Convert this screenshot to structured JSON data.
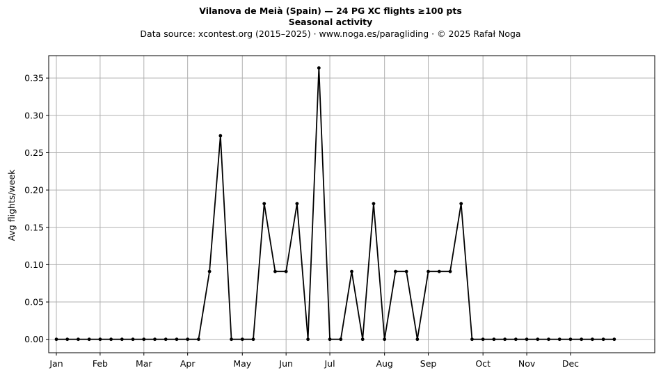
{
  "chart_data": {
    "type": "line",
    "title": "Vilanova de Meià (Spain)  —  24 PG XC flights ≥100 pts",
    "subtitle": "Seasonal activity",
    "source": "Data source: xcontest.org (2015–2025)  ·  www.noga.es/paragliding  ·  © 2025 Rafał Noga",
    "xlabel": "",
    "ylabel": "Avg flights/week",
    "xlim": [
      0.3,
      55.7
    ],
    "ylim": [
      -0.018,
      0.38
    ],
    "y_ticks": [
      0.0,
      0.05,
      0.1,
      0.15,
      0.2,
      0.25,
      0.3,
      0.35
    ],
    "y_tick_labels": [
      "0.00",
      "0.05",
      "0.10",
      "0.15",
      "0.20",
      "0.25",
      "0.30",
      "0.35"
    ],
    "x_ticks": [
      1,
      5,
      9,
      13,
      18,
      22,
      26,
      31,
      35,
      40,
      44,
      48
    ],
    "x_tick_labels": [
      "Jan",
      "Feb",
      "Mar",
      "Apr",
      "May",
      "Jun",
      "Jul",
      "Aug",
      "Sep",
      "Oct",
      "Nov",
      "Dec"
    ],
    "grid": true,
    "line_color": "#000000",
    "series": [
      {
        "x": [
          1,
          2,
          3,
          4,
          5,
          6,
          7,
          8,
          9,
          10,
          11,
          12,
          13,
          14,
          15,
          16,
          17,
          18,
          19,
          20,
          21,
          22,
          23,
          24,
          25,
          26,
          27,
          28,
          29,
          30,
          31,
          32,
          33,
          34,
          35,
          36,
          37,
          38,
          39,
          40,
          41,
          42,
          43,
          44,
          45,
          46,
          47,
          48,
          49,
          50,
          51,
          52
        ],
        "values": [
          0,
          0,
          0,
          0,
          0,
          0,
          0,
          0,
          0,
          0,
          0,
          0,
          0,
          0,
          0.0909,
          0.2727,
          0,
          0,
          0,
          0.1818,
          0.0909,
          0.0909,
          0.1818,
          0,
          0.3636,
          0,
          0,
          0.0909,
          0,
          0.1818,
          0,
          0.0909,
          0.0909,
          0,
          0.0909,
          0.0909,
          0.0909,
          0.1818,
          0,
          0,
          0,
          0,
          0,
          0,
          0,
          0,
          0,
          0,
          0,
          0,
          0,
          0
        ]
      }
    ]
  }
}
